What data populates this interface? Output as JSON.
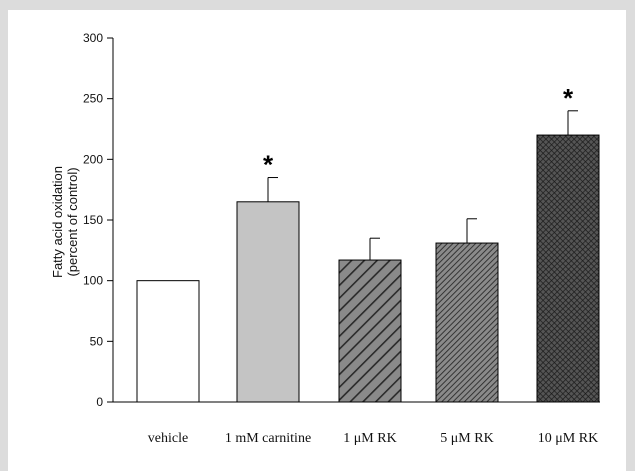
{
  "chart_data": {
    "type": "bar",
    "title": "",
    "xlabel": "",
    "ylabel_lines": [
      "Fatty acid oxidation",
      "(percent of control)"
    ],
    "ylim": [
      0,
      300
    ],
    "yticks": [
      0,
      50,
      100,
      150,
      200,
      250,
      300
    ],
    "categories": [
      "vehicle",
      "1 mM carnitine",
      "1 μM RK",
      "5 μM RK",
      "10 μM RK"
    ],
    "values": [
      100,
      165,
      117,
      131,
      220
    ],
    "errors": [
      0,
      20,
      18,
      20,
      20
    ],
    "significance": [
      "",
      "*",
      "",
      "",
      "*"
    ],
    "fills": [
      "white",
      "light-gray",
      "wide-hatch",
      "narrow-hatch",
      "crosshatch"
    ],
    "colors": {
      "edge": "#000000",
      "light_gray": "#c4c4c4",
      "hatch_bg": "#8a8a8a",
      "hatch_line": "#2a2a2a",
      "cross_bg": "#505050",
      "cross_line": "#1a1a1a"
    },
    "grid": false,
    "legend": "none"
  }
}
